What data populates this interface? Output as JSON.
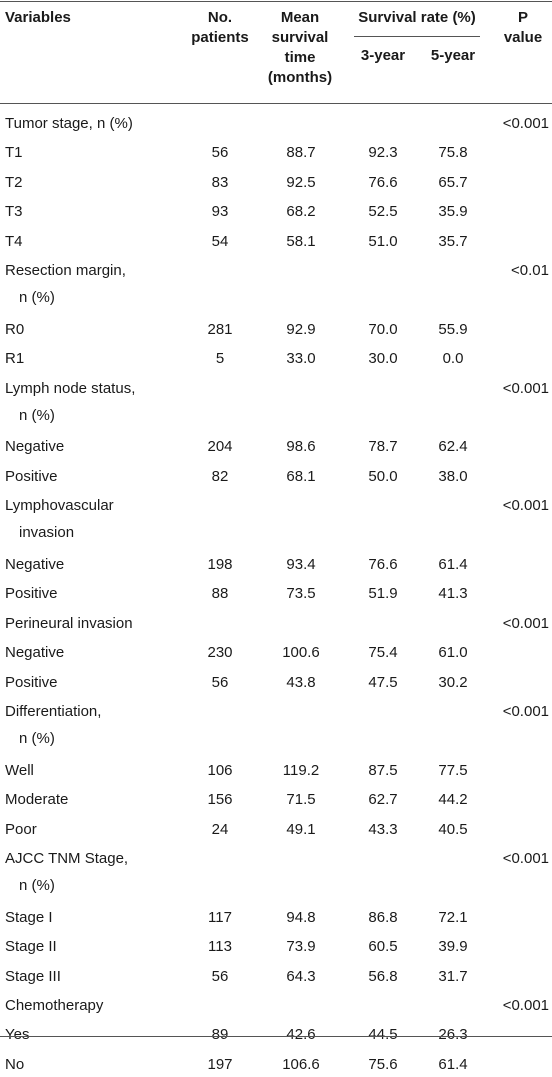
{
  "header": {
    "variables": "Variables",
    "patients": [
      "No.",
      "patients"
    ],
    "mean": [
      "Mean",
      "survival",
      "time",
      "(months)"
    ],
    "survival_rate": "Survival rate (%)",
    "three_year": "3-year",
    "five_year": "5-year",
    "p_value": [
      "P",
      "value"
    ]
  },
  "rows": [
    {
      "variable": [
        "Tumor stage, n (%)"
      ],
      "n": "",
      "mean": "",
      "y3": "",
      "y5": "",
      "p": "<0.001"
    },
    {
      "variable": [
        "T1"
      ],
      "n": "56",
      "mean": "88.7",
      "y3": "92.3",
      "y5": "75.8",
      "p": ""
    },
    {
      "variable": [
        "T2"
      ],
      "n": "83",
      "mean": "92.5",
      "y3": "76.6",
      "y5": "65.7",
      "p": ""
    },
    {
      "variable": [
        "T3"
      ],
      "n": "93",
      "mean": "68.2",
      "y3": "52.5",
      "y5": "35.9",
      "p": ""
    },
    {
      "variable": [
        "T4"
      ],
      "n": "54",
      "mean": "58.1",
      "y3": "51.0",
      "y5": "35.7",
      "p": ""
    },
    {
      "variable": [
        "Resection margin,",
        "n (%)"
      ],
      "n": "",
      "mean": "",
      "y3": "",
      "y5": "",
      "p": "<0.01"
    },
    {
      "variable": [
        "R0"
      ],
      "n": "281",
      "mean": "92.9",
      "y3": "70.0",
      "y5": "55.9",
      "p": ""
    },
    {
      "variable": [
        "R1"
      ],
      "n": "5",
      "mean": "33.0",
      "y3": "30.0",
      "y5": "0.0",
      "p": ""
    },
    {
      "variable": [
        "Lymph node status,",
        "n (%)"
      ],
      "n": "",
      "mean": "",
      "y3": "",
      "y5": "",
      "p": "<0.001"
    },
    {
      "variable": [
        "Negative"
      ],
      "n": "204",
      "mean": "98.6",
      "y3": "78.7",
      "y5": "62.4",
      "p": ""
    },
    {
      "variable": [
        "Positive"
      ],
      "n": "82",
      "mean": "68.1",
      "y3": "50.0",
      "y5": "38.0",
      "p": ""
    },
    {
      "variable": [
        "Lymphovascular",
        "invasion"
      ],
      "n": "",
      "mean": "",
      "y3": "",
      "y5": "",
      "p": "<0.001"
    },
    {
      "variable": [
        "Negative"
      ],
      "n": "198",
      "mean": "93.4",
      "y3": "76.6",
      "y5": "61.4",
      "p": ""
    },
    {
      "variable": [
        "Positive"
      ],
      "n": "88",
      "mean": "73.5",
      "y3": "51.9",
      "y5": "41.3",
      "p": ""
    },
    {
      "variable": [
        "Perineural invasion"
      ],
      "n": "",
      "mean": "",
      "y3": "",
      "y5": "",
      "p": "<0.001"
    },
    {
      "variable": [
        "Negative"
      ],
      "n": "230",
      "mean": "100.6",
      "y3": "75.4",
      "y5": "61.0",
      "p": ""
    },
    {
      "variable": [
        "Positive"
      ],
      "n": "56",
      "mean": "43.8",
      "y3": "47.5",
      "y5": "30.2",
      "p": ""
    },
    {
      "variable": [
        "Differentiation,",
        "n (%)"
      ],
      "n": "",
      "mean": "",
      "y3": "",
      "y5": "",
      "p": "<0.001"
    },
    {
      "variable": [
        "Well"
      ],
      "n": "106",
      "mean": "119.2",
      "y3": "87.5",
      "y5": "77.5",
      "p": ""
    },
    {
      "variable": [
        "Moderate"
      ],
      "n": "156",
      "mean": "71.5",
      "y3": "62.7",
      "y5": "44.2",
      "p": ""
    },
    {
      "variable": [
        "Poor"
      ],
      "n": "24",
      "mean": "49.1",
      "y3": "43.3",
      "y5": "40.5",
      "p": ""
    },
    {
      "variable": [
        "AJCC TNM Stage,",
        "n (%)"
      ],
      "n": "",
      "mean": "",
      "y3": "",
      "y5": "",
      "p": "<0.001"
    },
    {
      "variable": [
        "Stage I"
      ],
      "n": "117",
      "mean": "94.8",
      "y3": "86.8",
      "y5": "72.1",
      "p": ""
    },
    {
      "variable": [
        "Stage II"
      ],
      "n": "113",
      "mean": "73.9",
      "y3": "60.5",
      "y5": "39.9",
      "p": ""
    },
    {
      "variable": [
        "Stage III"
      ],
      "n": "56",
      "mean": "64.3",
      "y3": "56.8",
      "y5": "31.7",
      "p": ""
    },
    {
      "variable": [
        "Chemotherapy"
      ],
      "n": "",
      "mean": "",
      "y3": "",
      "y5": "",
      "p": "<0.001"
    },
    {
      "variable": [
        "Yes"
      ],
      "n": "89",
      "mean": "42.6",
      "y3": "44.5",
      "y5": "26.3",
      "p": ""
    },
    {
      "variable": [
        "No"
      ],
      "n": "197",
      "mean": "106.6",
      "y3": "75.6",
      "y5": "61.4",
      "p": ""
    }
  ]
}
